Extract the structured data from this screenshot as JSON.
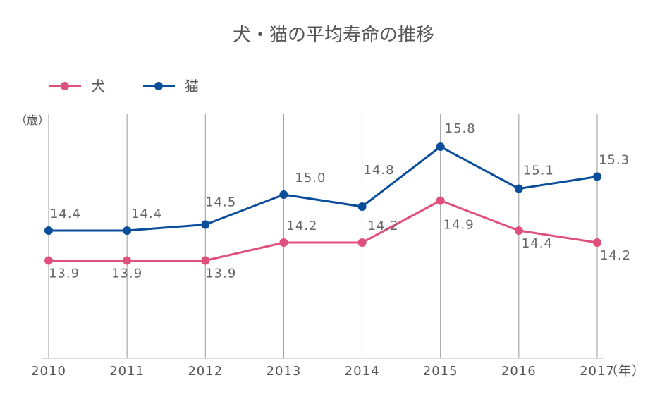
{
  "chart_data": {
    "type": "line",
    "title": "犬・猫の平均寿命の推移",
    "y_unit": "（歳）",
    "x_unit": "（年）",
    "categories": [
      "2010",
      "2011",
      "2012",
      "2013",
      "2014",
      "2015",
      "2016",
      "2017"
    ],
    "ylim": [
      11.0,
      16.0
    ],
    "grid": "vertical",
    "legend_position": "top-left",
    "series": [
      {
        "name": "犬",
        "color": "#e0507c",
        "values": [
          13.9,
          13.9,
          13.9,
          14.2,
          14.2,
          14.9,
          14.4,
          14.2
        ],
        "labels": [
          "13.9",
          "13.9",
          "13.9",
          "14.2",
          "14.2",
          "14.9",
          "14.4",
          "14.2"
        ]
      },
      {
        "name": "猫",
        "color": "#0a4e9b",
        "values": [
          14.4,
          14.4,
          14.5,
          15.0,
          14.8,
          15.8,
          15.1,
          15.3
        ],
        "labels": [
          "14.4",
          "14.4",
          "14.5",
          "15.0",
          "14.8",
          "15.8",
          "15.1",
          "15.3"
        ]
      }
    ]
  }
}
